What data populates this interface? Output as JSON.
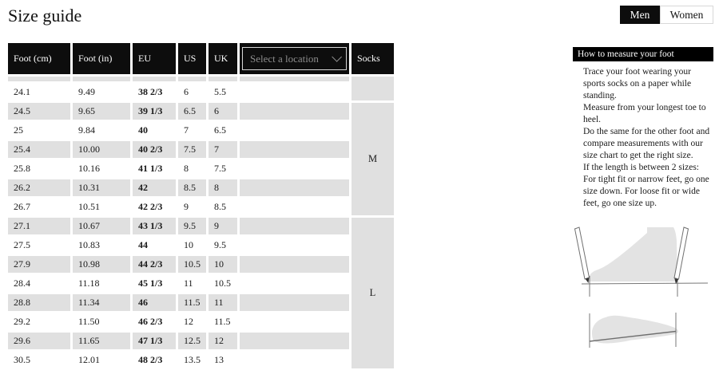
{
  "page": {
    "title": "Size guide"
  },
  "gender_toggle": {
    "men_label": "Men",
    "women_label": "Women",
    "selected": "Men"
  },
  "table": {
    "headers": {
      "foot_cm": "Foot (cm)",
      "foot_in": "Foot (in)",
      "eu": "EU",
      "us": "US",
      "uk": "UK",
      "socks": "Socks"
    },
    "location_placeholder": "Select a location",
    "rows": [
      {
        "foot_cm": "24.1",
        "foot_in": "9.49",
        "eu": "38 2/3",
        "us": "6",
        "uk": "5.5"
      },
      {
        "foot_cm": "24.5",
        "foot_in": "9.65",
        "eu": "39 1/3",
        "us": "6.5",
        "uk": "6"
      },
      {
        "foot_cm": "25",
        "foot_in": "9.84",
        "eu": "40",
        "us": "7",
        "uk": "6.5"
      },
      {
        "foot_cm": "25.4",
        "foot_in": "10.00",
        "eu": "40 2/3",
        "us": "7.5",
        "uk": "7"
      },
      {
        "foot_cm": "25.8",
        "foot_in": "10.16",
        "eu": "41 1/3",
        "us": "8",
        "uk": "7.5"
      },
      {
        "foot_cm": "26.2",
        "foot_in": "10.31",
        "eu": "42",
        "us": "8.5",
        "uk": "8"
      },
      {
        "foot_cm": "26.7",
        "foot_in": "10.51",
        "eu": "42 2/3",
        "us": "9",
        "uk": "8.5"
      },
      {
        "foot_cm": "27.1",
        "foot_in": "10.67",
        "eu": "43 1/3",
        "us": "9.5",
        "uk": "9"
      },
      {
        "foot_cm": "27.5",
        "foot_in": "10.83",
        "eu": "44",
        "us": "10",
        "uk": "9.5"
      },
      {
        "foot_cm": "27.9",
        "foot_in": "10.98",
        "eu": "44 2/3",
        "us": "10.5",
        "uk": "10"
      },
      {
        "foot_cm": "28.4",
        "foot_in": "11.18",
        "eu": "45 1/3",
        "us": "11",
        "uk": "10.5"
      },
      {
        "foot_cm": "28.8",
        "foot_in": "11.34",
        "eu": "46",
        "us": "11.5",
        "uk": "11"
      },
      {
        "foot_cm": "29.2",
        "foot_in": "11.50",
        "eu": "46 2/3",
        "us": "12",
        "uk": "11.5"
      },
      {
        "foot_cm": "29.6",
        "foot_in": "11.65",
        "eu": "47 1/3",
        "us": "12.5",
        "uk": "12"
      },
      {
        "foot_cm": "30.5",
        "foot_in": "12.01",
        "eu": "48 2/3",
        "us": "13.5",
        "uk": "13"
      }
    ],
    "partial_top_row": true,
    "sock_groups": [
      {
        "label": "",
        "span": 2
      },
      {
        "label": "M",
        "span": 6
      },
      {
        "label": "L",
        "span": 8
      }
    ]
  },
  "instructions": {
    "title": "How to measure your foot",
    "paragraphs": [
      "Trace your foot wearing your sports socks on a paper while standing.",
      "Measure from your longest toe to heel.",
      "Do the same for the other foot and compare measurements with our size chart to get the right size.",
      "If the length is between 2 sizes:",
      "For tight fit or narrow feet, go one size down. For loose fit or wide feet, go one size up."
    ]
  },
  "colors": {
    "header_bg": "#0d0d0d",
    "row_alt_bg": "#e0e0e0",
    "placeholder_text": "#8c8c8c",
    "diagram_fill": "#e3e3e3"
  }
}
